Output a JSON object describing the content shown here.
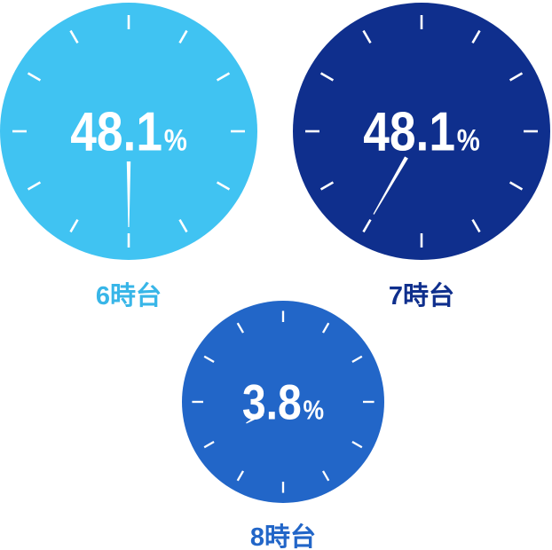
{
  "chart_data": {
    "type": "clock",
    "categories": [
      "6時台",
      "7時台",
      "8時台"
    ],
    "values": [
      48.1,
      48.1,
      3.8
    ],
    "unit": "%",
    "hand_hours": [
      6,
      7,
      8
    ],
    "colors": [
      "#40c3f2",
      "#0f2f8d",
      "#2266c8"
    ],
    "label_colors": [
      "#38b6e8",
      "#0f2f8d",
      "#2266c8"
    ]
  }
}
